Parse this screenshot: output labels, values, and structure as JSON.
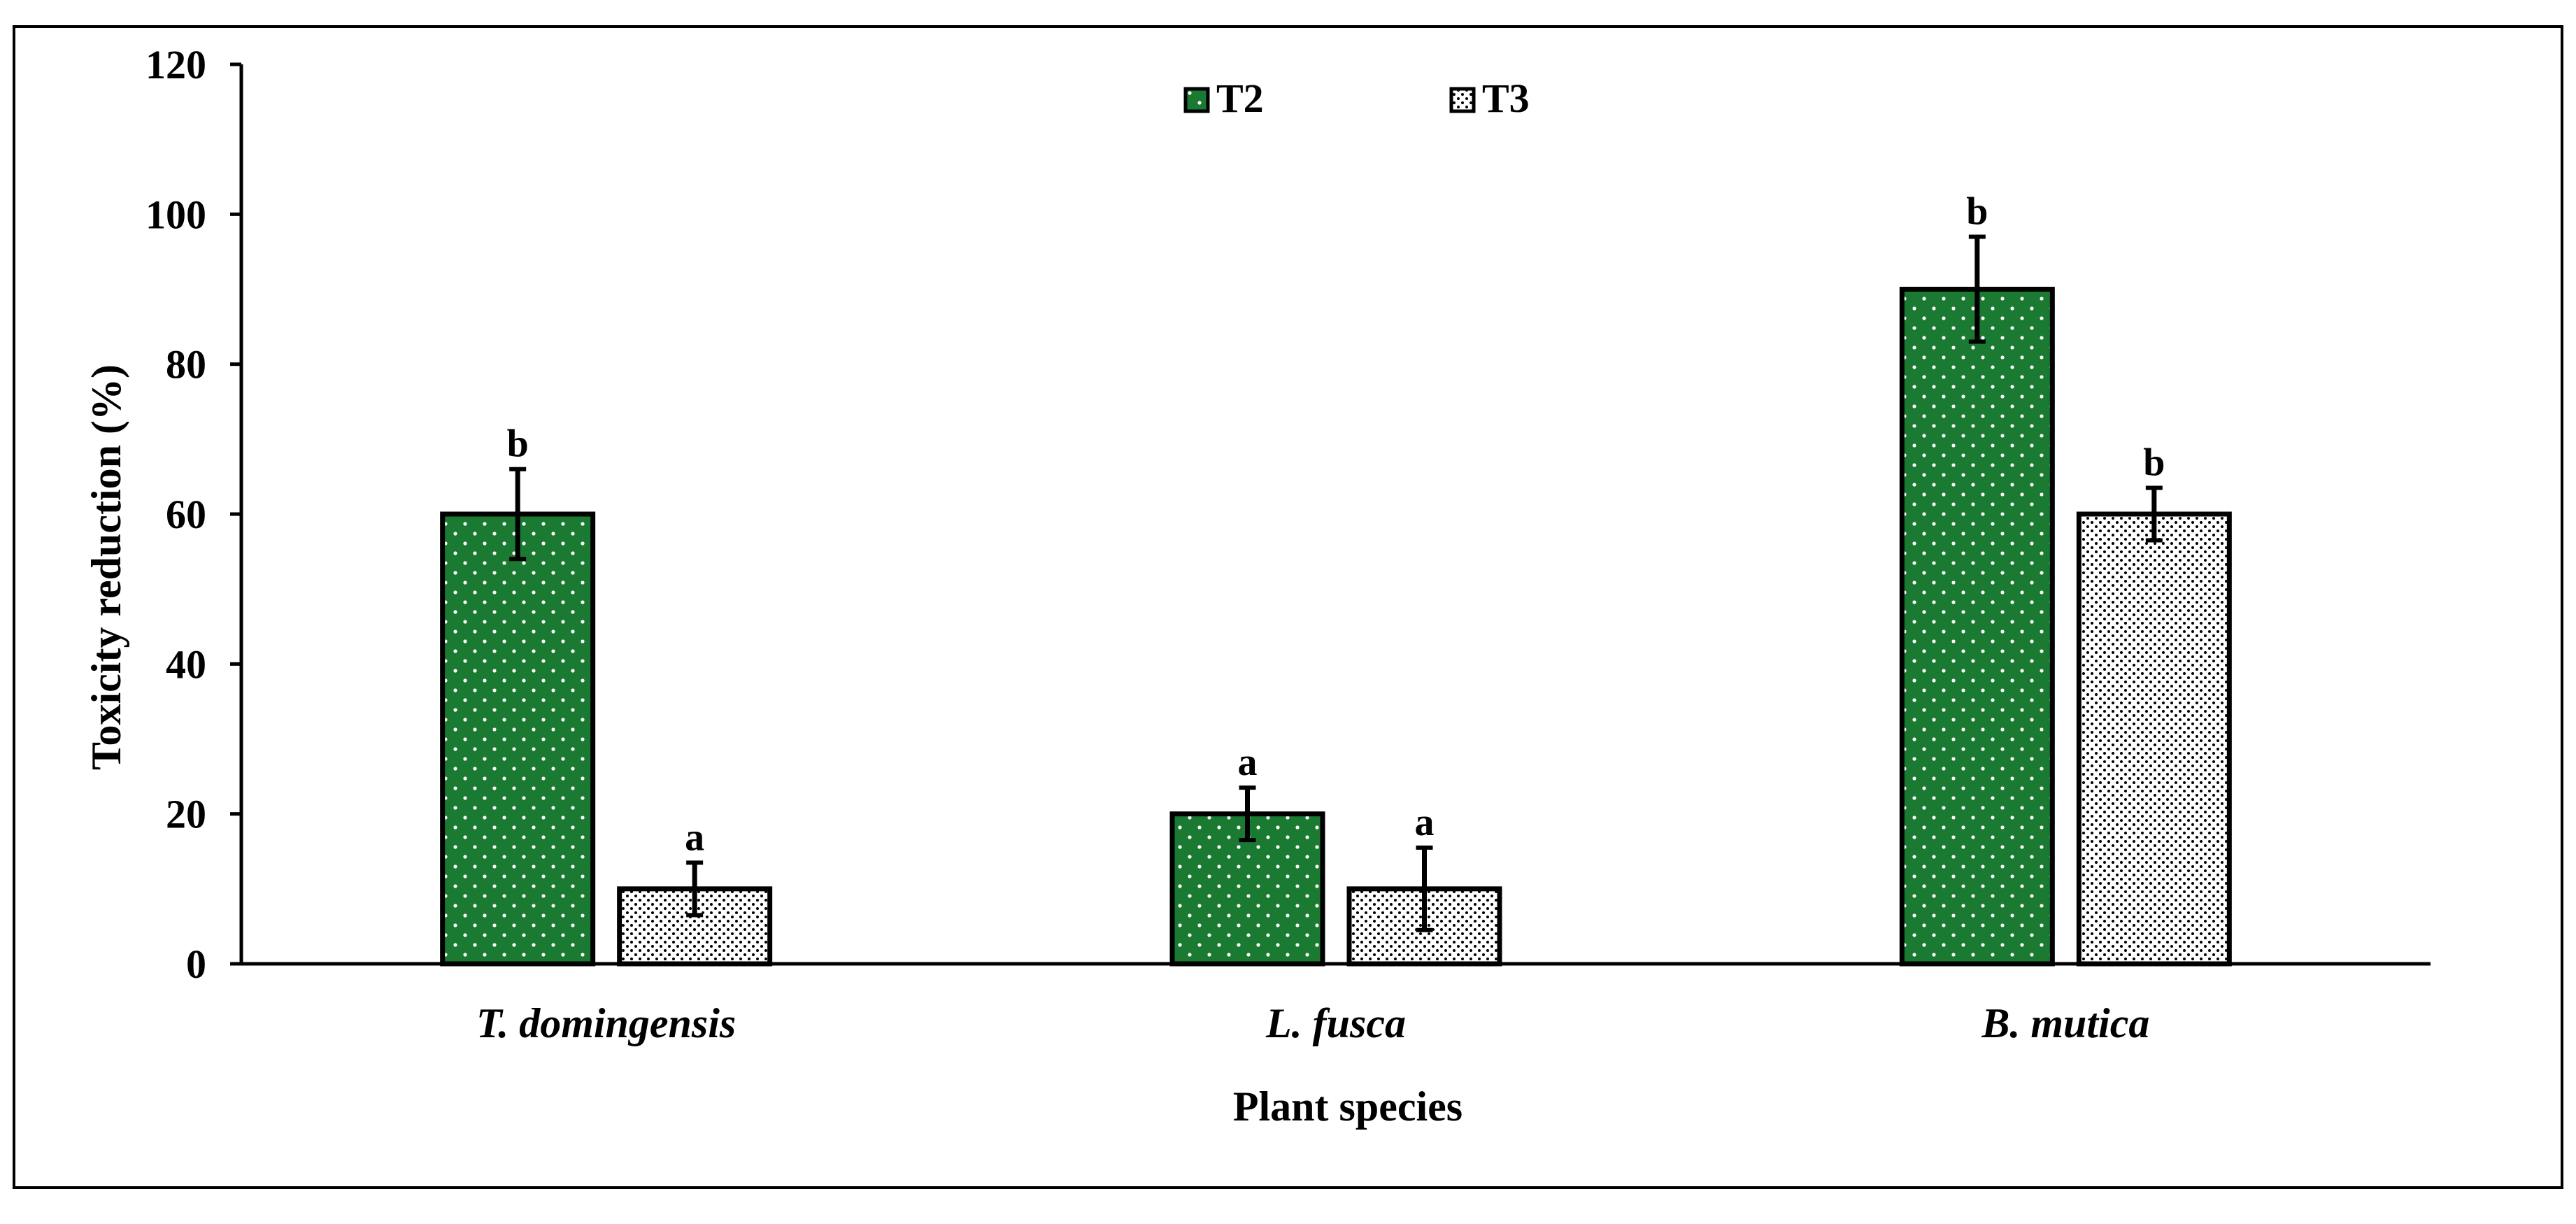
{
  "chart_data": {
    "type": "bar",
    "title": "",
    "xlabel": "Plant species",
    "ylabel": "Toxicity reduction (%)",
    "ylim": [
      0,
      120
    ],
    "yticks": [
      "0",
      "20",
      "40",
      "60",
      "80",
      "100",
      "120"
    ],
    "grid": false,
    "legend_position": "top-center",
    "categories": [
      "T. domingensis",
      "L. fusca",
      "B. mutica"
    ],
    "series": [
      {
        "name": "T2",
        "color": "#1a7a32",
        "pattern": "sparse-dots",
        "values": [
          60,
          20,
          90
        ],
        "errors": [
          6,
          3.5,
          7
        ],
        "significance": [
          "b",
          "a",
          "b"
        ]
      },
      {
        "name": "T3",
        "color": "#ffffff",
        "pattern": "dense-dots",
        "values": [
          10,
          10,
          60
        ],
        "errors": [
          3.5,
          5.5,
          3.5
        ],
        "significance": [
          "a",
          "a",
          "b"
        ]
      }
    ]
  }
}
